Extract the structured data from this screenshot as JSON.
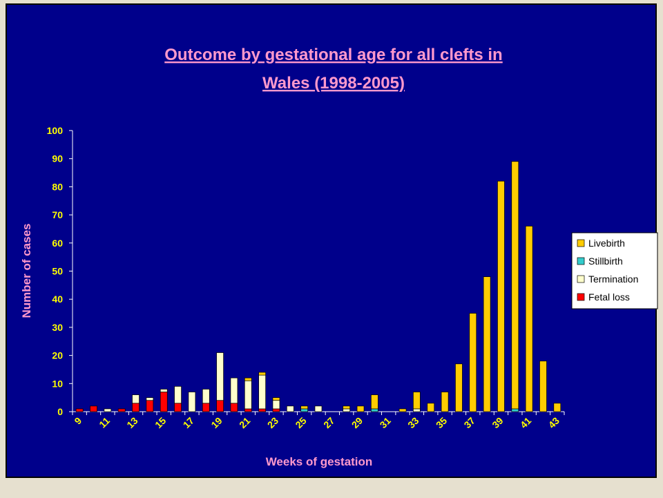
{
  "chart_data": {
    "type": "bar",
    "stacked": true,
    "title": [
      "Outcome by gestational age for all clefts in",
      "Wales (1998-2005)"
    ],
    "x_label": "Weeks of gestation",
    "y_label": "Number of cases",
    "categories": [
      "9",
      null,
      "11",
      null,
      "13",
      null,
      "15",
      null,
      "17",
      null,
      "19",
      null,
      "21",
      null,
      "23",
      null,
      "25",
      null,
      "27",
      null,
      "29",
      null,
      "31",
      null,
      "33",
      null,
      "35",
      null,
      "37",
      null,
      "39",
      null,
      "41",
      null,
      "43"
    ],
    "series": [
      {
        "name": "Livebirth",
        "color": "#ffcc00",
        "values": [
          0,
          0,
          0,
          0,
          0,
          0,
          0,
          0,
          0,
          0,
          0,
          0,
          1,
          1,
          1,
          0,
          1,
          0,
          0,
          1,
          2,
          5,
          0,
          1,
          6,
          3,
          7,
          17,
          35,
          48,
          82,
          88,
          66,
          18,
          3
        ]
      },
      {
        "name": "Stillbirth",
        "color": "#33cccc",
        "values": [
          0,
          0,
          0,
          0,
          0,
          0,
          0,
          0,
          0,
          0,
          0,
          0,
          0,
          0,
          0,
          0,
          1,
          0,
          0,
          0,
          0,
          1,
          0,
          0,
          0,
          0,
          0,
          0,
          0,
          0,
          0,
          1,
          0,
          0,
          0
        ]
      },
      {
        "name": "Termination",
        "color": "#ffffcc",
        "values": [
          0,
          0,
          1,
          0,
          3,
          1,
          1,
          6,
          7,
          5,
          17,
          9,
          10,
          12,
          3,
          2,
          0,
          2,
          0,
          1,
          0,
          0,
          0,
          0,
          1,
          0,
          0,
          0,
          0,
          0,
          0,
          0,
          0,
          0,
          0
        ]
      },
      {
        "name": "Fetal loss",
        "color": "#ff0000",
        "values": [
          1,
          2,
          0,
          1,
          3,
          4,
          7,
          3,
          0,
          3,
          4,
          3,
          1,
          1,
          1,
          0,
          0,
          0,
          0,
          0,
          0,
          0,
          0,
          0,
          0,
          0,
          0,
          0,
          0,
          0,
          0,
          0,
          0,
          0,
          0
        ]
      }
    ],
    "ylim": [
      0,
      100
    ],
    "yticks": [
      0,
      10,
      20,
      30,
      40,
      50,
      60,
      70,
      80,
      90,
      100
    ],
    "legend": "right"
  }
}
